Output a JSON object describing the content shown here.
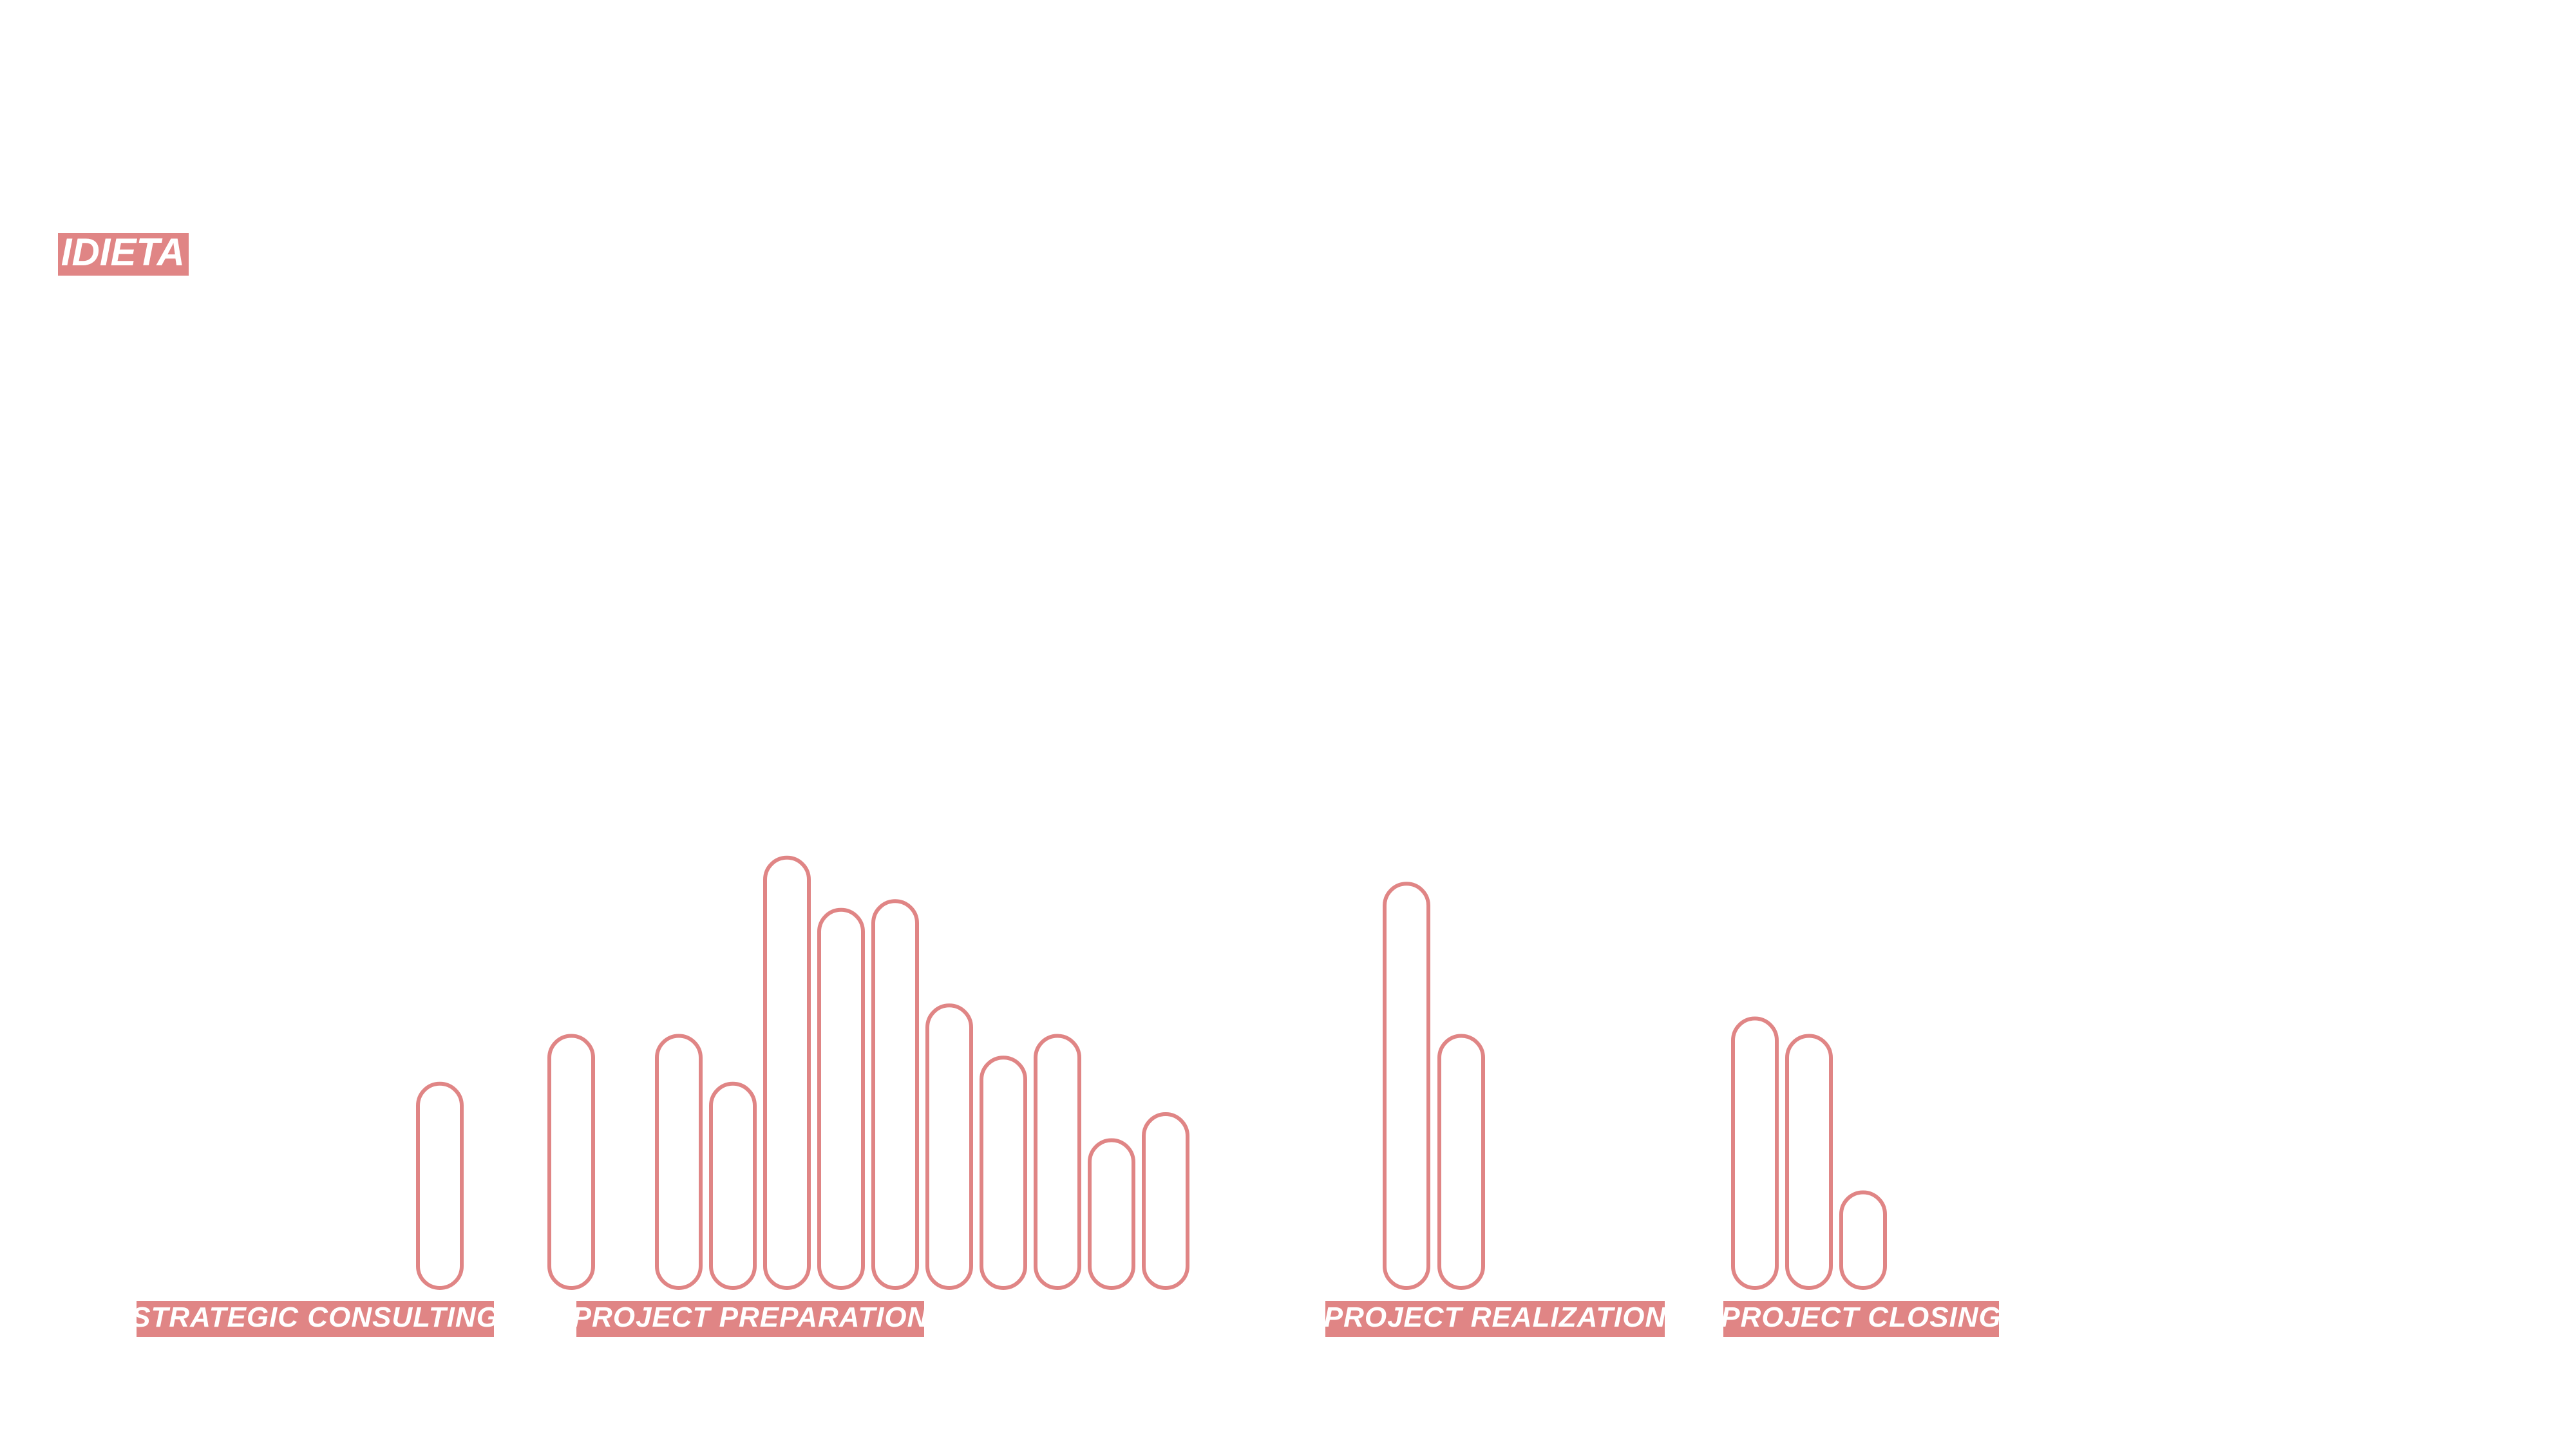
{
  "brand": {
    "text": "IDIETA",
    "color": "#e08585"
  },
  "style": {
    "accent": "#e08585",
    "bar_fill": "#ffffff",
    "label_text_color": "#ffffff"
  },
  "chart_data": {
    "type": "bar",
    "title": "",
    "xlabel": "",
    "ylabel": "",
    "grid": false,
    "legend": "none",
    "ylim": [
      0,
      10
    ],
    "phases": [
      {
        "name": "STRATEGIC CONSULTING",
        "values": [
          4.7
        ]
      },
      {
        "name": "PROJECT PREPARATION",
        "values": [
          5.8,
          5.8,
          4.7,
          9.9,
          8.7,
          8.9,
          6.5,
          5.3,
          5.8,
          3.4,
          4.0
        ]
      },
      {
        "name": "PROJECT REALIZATION",
        "values": [
          9.3,
          5.8
        ]
      },
      {
        "name": "PROJECT CLOSING",
        "values": [
          6.2,
          5.8,
          2.2
        ]
      }
    ]
  }
}
